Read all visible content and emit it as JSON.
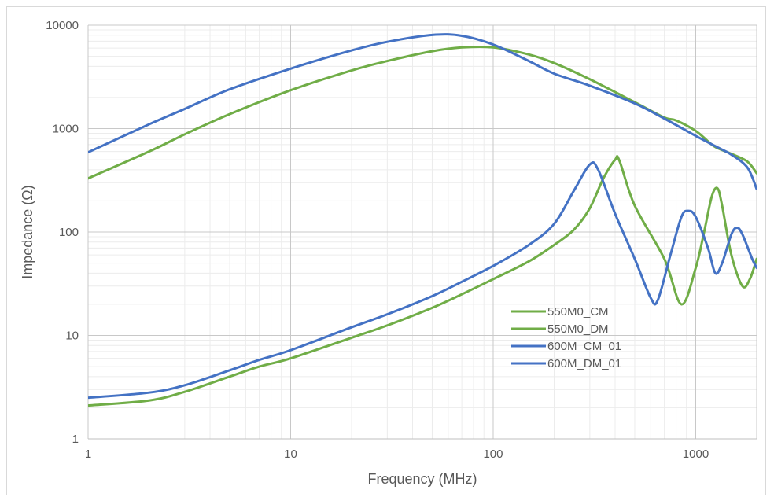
{
  "chart_data": {
    "type": "line",
    "title": "",
    "xlabel": "Frequency (MHz)",
    "ylabel": "Impedance (Ω)",
    "x_scale": "log",
    "y_scale": "log",
    "xlim": [
      1,
      2000
    ],
    "ylim": [
      1,
      10000
    ],
    "x_ticks": [
      "1",
      "10",
      "100",
      "1000"
    ],
    "y_ticks": [
      "1",
      "10",
      "100",
      "1000",
      "10000"
    ],
    "grid": true,
    "minor_grid": true,
    "legend_position": "right-center",
    "series": [
      {
        "name": "550M0_CM",
        "color": "#70ad47",
        "points": [
          [
            1,
            330
          ],
          [
            2,
            600
          ],
          [
            3,
            880
          ],
          [
            5,
            1380
          ],
          [
            10,
            2350
          ],
          [
            20,
            3650
          ],
          [
            30,
            4500
          ],
          [
            50,
            5600
          ],
          [
            70,
            6100
          ],
          [
            100,
            6100
          ],
          [
            150,
            5200
          ],
          [
            200,
            4300
          ],
          [
            300,
            3000
          ],
          [
            500,
            1800
          ],
          [
            700,
            1280
          ],
          [
            800,
            1200
          ],
          [
            1000,
            950
          ],
          [
            1200,
            700
          ],
          [
            1300,
            640
          ],
          [
            1500,
            570
          ],
          [
            1800,
            480
          ],
          [
            2000,
            370
          ]
        ]
      },
      {
        "name": "550M0_DM",
        "color": "#70ad47",
        "points": [
          [
            1,
            2.1
          ],
          [
            2,
            2.35
          ],
          [
            3,
            2.85
          ],
          [
            5,
            4.0
          ],
          [
            7,
            5.0
          ],
          [
            10,
            6.0
          ],
          [
            20,
            9.5
          ],
          [
            30,
            12.5
          ],
          [
            50,
            18.5
          ],
          [
            70,
            25
          ],
          [
            100,
            35
          ],
          [
            150,
            52
          ],
          [
            200,
            75
          ],
          [
            250,
            105
          ],
          [
            300,
            170
          ],
          [
            350,
            330
          ],
          [
            400,
            500
          ],
          [
            420,
            490
          ],
          [
            500,
            180
          ],
          [
            700,
            55
          ],
          [
            850,
            20
          ],
          [
            1000,
            45
          ],
          [
            1100,
            100
          ],
          [
            1200,
            220
          ],
          [
            1280,
            265
          ],
          [
            1350,
            180
          ],
          [
            1500,
            60
          ],
          [
            1700,
            30
          ],
          [
            1850,
            35
          ],
          [
            2000,
            55
          ]
        ]
      },
      {
        "name": "600M_CM_01",
        "color": "#4472c4",
        "points": [
          [
            1,
            590
          ],
          [
            2,
            1100
          ],
          [
            3,
            1550
          ],
          [
            5,
            2400
          ],
          [
            10,
            3800
          ],
          [
            20,
            5700
          ],
          [
            30,
            6900
          ],
          [
            50,
            8050
          ],
          [
            70,
            7900
          ],
          [
            100,
            6500
          ],
          [
            150,
            4500
          ],
          [
            200,
            3400
          ],
          [
            300,
            2600
          ],
          [
            500,
            1750
          ],
          [
            700,
            1250
          ],
          [
            1000,
            850
          ],
          [
            1300,
            650
          ],
          [
            1500,
            560
          ],
          [
            1800,
            420
          ],
          [
            2000,
            260
          ]
        ]
      },
      {
        "name": "600M_DM_01",
        "color": "#4472c4",
        "points": [
          [
            1,
            2.5
          ],
          [
            2,
            2.8
          ],
          [
            3,
            3.3
          ],
          [
            5,
            4.6
          ],
          [
            7,
            5.8
          ],
          [
            10,
            7.2
          ],
          [
            20,
            12
          ],
          [
            30,
            16
          ],
          [
            50,
            24
          ],
          [
            70,
            33
          ],
          [
            100,
            47
          ],
          [
            150,
            75
          ],
          [
            200,
            120
          ],
          [
            250,
            250
          ],
          [
            300,
            450
          ],
          [
            330,
            400
          ],
          [
            400,
            150
          ],
          [
            500,
            55
          ],
          [
            600,
            23
          ],
          [
            650,
            22
          ],
          [
            750,
            60
          ],
          [
            850,
            140
          ],
          [
            920,
            160
          ],
          [
            1000,
            140
          ],
          [
            1150,
            70
          ],
          [
            1250,
            40
          ],
          [
            1350,
            50
          ],
          [
            1500,
            95
          ],
          [
            1600,
            110
          ],
          [
            1700,
            95
          ],
          [
            1900,
            55
          ],
          [
            2000,
            45
          ]
        ]
      }
    ]
  }
}
